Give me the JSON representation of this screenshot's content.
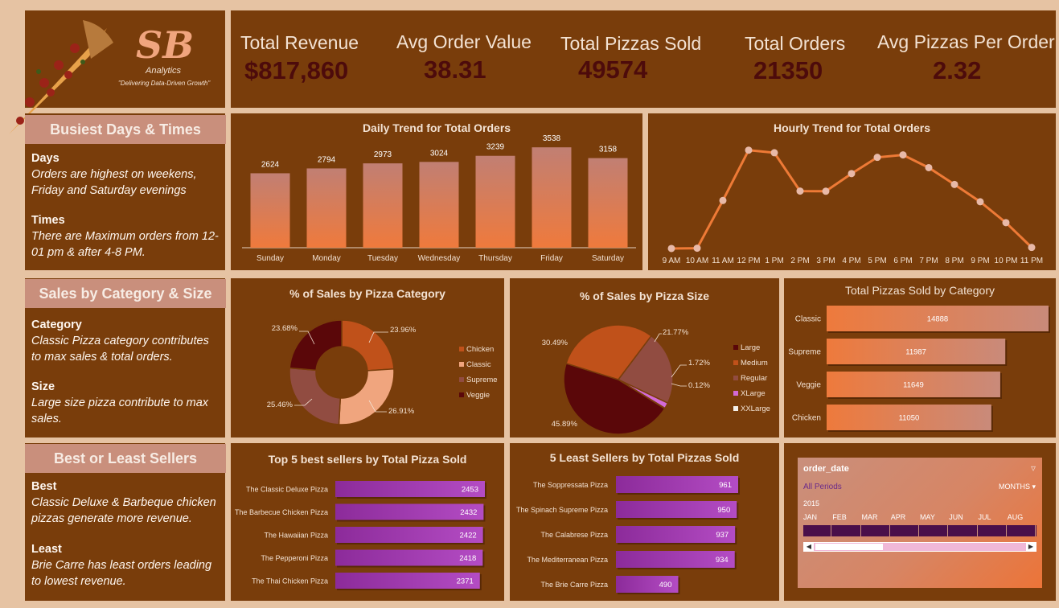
{
  "brand": {
    "logo": "SB",
    "name": "Analytics",
    "tagline": "\"Delivering Data-Driven Growth\""
  },
  "kpis": [
    {
      "label": "Total Revenue",
      "value": "$817,860"
    },
    {
      "label": "Avg Order Value",
      "value": "38.31"
    },
    {
      "label": "Total Pizzas Sold",
      "value": "49574"
    },
    {
      "label": "Total Orders",
      "value": "21350"
    },
    {
      "label": "Avg Pizzas Per  Order",
      "value": "2.32"
    }
  ],
  "insights": {
    "busiest": {
      "title": "Busiest Days & Times",
      "days_head": "Days",
      "days_text": "Orders are highest on weekens, Friday and Saturday evenings",
      "times_head": "Times",
      "times_text": "There are Maximum orders from 12-01 pm & after 4-8 PM."
    },
    "category": {
      "title": "Sales by Category & Size",
      "cat_head": "Category",
      "cat_text": "Classic Pizza category contributes to max sales & total orders.",
      "size_head": "Size",
      "size_text": "Large size pizza contribute to max sales."
    },
    "sellers": {
      "title": "Best or Least Sellers",
      "best_head": "Best",
      "best_text": "Classic Deluxe & Barbeque chicken pizzas generate more revenue.",
      "least_head": "Least",
      "least_text": "Brie Carre has least orders leading to lowest revenue."
    }
  },
  "colors": {
    "panel": "#793d0b",
    "kpi_value": "#4d0b0b",
    "accent_orange": "#e7793a",
    "purple": "#a33ab3",
    "pie": {
      "Chicken": "#c0511a",
      "Classic": "#f0a57e",
      "Supreme": "#914c41",
      "Veggie": "#5a0709",
      "Large": "#5a0709",
      "Medium": "#c0511a",
      "Regular": "#914c41",
      "XLarge": "#d36ad6",
      "XXLarge": "#f5f0ea"
    }
  },
  "slicer": {
    "field": "order_date",
    "period": "All Periods",
    "level": "MONTHS",
    "year": "2015",
    "months": [
      "JAN",
      "FEB",
      "MAR",
      "APR",
      "MAY",
      "JUN",
      "JUL",
      "AUG"
    ]
  },
  "chart_data": [
    {
      "id": "daily",
      "type": "bar",
      "title": "Daily Trend for Total Orders",
      "categories": [
        "Sunday",
        "Monday",
        "Tuesday",
        "Wednesday",
        "Thursday",
        "Friday",
        "Saturday"
      ],
      "values": [
        2624,
        2794,
        2973,
        3024,
        3239,
        3538,
        3158
      ],
      "ylim": [
        0,
        3600
      ]
    },
    {
      "id": "hourly",
      "type": "line",
      "title": "Hourly Trend for Total Orders",
      "categories": [
        "9 AM",
        "10 AM",
        "11 AM",
        "12 PM",
        "1 PM",
        "2 PM",
        "3 PM",
        "4 PM",
        "5 PM",
        "6 PM",
        "7 PM",
        "8 PM",
        "9 PM",
        "10 PM",
        "11 PM"
      ],
      "values": [
        1,
        8,
        1231,
        2520,
        2455,
        1472,
        1468,
        1920,
        2336,
        2399,
        2072,
        1642,
        1198,
        663,
        28
      ],
      "ylim": [
        0,
        2700
      ]
    },
    {
      "id": "category_pie",
      "type": "pie",
      "title": "% of Sales by Pizza Category",
      "categories": [
        "Chicken",
        "Classic",
        "Supreme",
        "Veggie"
      ],
      "values": [
        23.96,
        26.91,
        25.46,
        23.68
      ],
      "labels": [
        "23.96%",
        "26.91%",
        "25.46%",
        "23.68%"
      ]
    },
    {
      "id": "size_pie",
      "type": "pie",
      "title": "% of Sales by Pizza Size",
      "categories": [
        "Large",
        "Medium",
        "Regular",
        "XLarge",
        "XXLarge"
      ],
      "values": [
        45.89,
        30.49,
        21.77,
        1.72,
        0.12
      ],
      "labels": [
        "45.89%",
        "30.49%",
        "21.77%",
        "1.72%",
        "0.12%"
      ]
    },
    {
      "id": "cat_sold",
      "type": "bar",
      "title": "Total Pizzas Sold by Category",
      "categories": [
        "Classic",
        "Supreme",
        "Veggie",
        "Chicken"
      ],
      "values": [
        14888,
        11987,
        11649,
        11050
      ]
    },
    {
      "id": "top5",
      "type": "bar",
      "title": "Top 5 best sellers by Total Pizza Sold",
      "categories": [
        "The Classic Deluxe Pizza",
        "The Barbecue Chicken Pizza",
        "The Hawaiian Pizza",
        "The Pepperoni Pizza",
        "The Thai Chicken Pizza"
      ],
      "values": [
        2453,
        2432,
        2422,
        2418,
        2371
      ]
    },
    {
      "id": "least5",
      "type": "bar",
      "title": "5 Least Sellers by Total Pizzas Sold",
      "categories": [
        "The Soppressata Pizza",
        "The Spinach Supreme Pizza",
        "The Calabrese Pizza",
        "The Mediterranean Pizza",
        "The Brie Carre Pizza"
      ],
      "values": [
        961,
        950,
        937,
        934,
        490
      ]
    }
  ]
}
